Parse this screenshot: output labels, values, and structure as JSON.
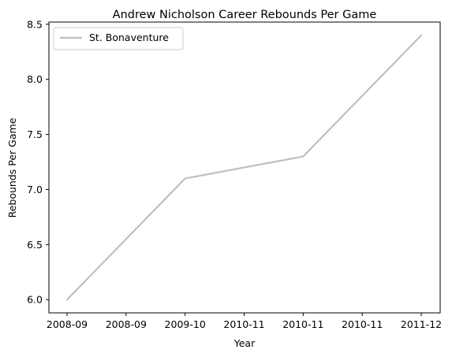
{
  "chart_data": {
    "type": "line",
    "title": "Andrew Nicholson  Career Rebounds Per Game",
    "xlabel": "Year",
    "ylabel": "Rebounds Per Game",
    "x_tick_labels": [
      "2008-09",
      "2008-09",
      "2009-10",
      "2010-11",
      "2010-11",
      "2010-11",
      "2011-12"
    ],
    "y_tick_labels": [
      "6.0",
      "6.5",
      "7.0",
      "7.5",
      "8.0",
      "8.5"
    ],
    "y_ticks": [
      6.0,
      6.5,
      7.0,
      7.5,
      8.0,
      8.5
    ],
    "ylim": [
      5.88,
      8.52
    ],
    "x": [
      "2008-09",
      "2009-10",
      "2010-11",
      "2011-12"
    ],
    "series": [
      {
        "name": "St. Bonaventure",
        "values": [
          6.0,
          7.1,
          7.3,
          8.4
        ],
        "color": "#bfbfbf"
      }
    ],
    "grid": false,
    "legend_position": "upper-left"
  }
}
